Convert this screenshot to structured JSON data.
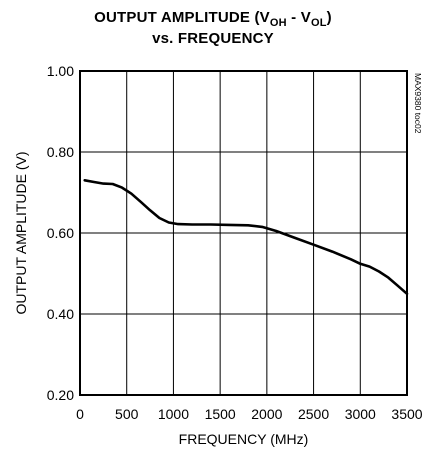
{
  "chart_data": {
    "type": "line",
    "title_line1_prefix": "OUTPUT AMPLITUDE (V",
    "title_sub_oh": "OH",
    "title_mid": " - V",
    "title_sub_ol": "OL",
    "title_suffix": ")",
    "title_line2": "vs. FREQUENCY",
    "xlabel": "FREQUENCY (MHz)",
    "ylabel": "OUTPUT AMPLITUDE (V)",
    "side_code": "MAX9380 toc02",
    "xlim": [
      0,
      3500
    ],
    "ylim": [
      0.2,
      1.0
    ],
    "x_ticks": [
      "0",
      "500",
      "1000",
      "1500",
      "2000",
      "2500",
      "3000",
      "3500"
    ],
    "y_ticks": [
      "1.00",
      "0.80",
      "0.60",
      "0.40",
      "0.20"
    ],
    "x_tick_values": [
      0,
      500,
      1000,
      1500,
      2000,
      2500,
      3000,
      3500
    ],
    "y_tick_values": [
      1.0,
      0.8,
      0.6,
      0.4,
      0.2
    ],
    "grid": true,
    "line_color": "#000000",
    "series": [
      {
        "x": [
          50,
          150,
          250,
          350,
          450,
          550,
          650,
          750,
          850,
          950,
          1050,
          1200,
          1400,
          1600,
          1800,
          1950,
          2100,
          2300,
          2500,
          2700,
          2900,
          3000,
          3100,
          3200,
          3300,
          3400,
          3500
        ],
        "values": [
          0.73,
          0.726,
          0.722,
          0.721,
          0.712,
          0.697,
          0.677,
          0.656,
          0.637,
          0.626,
          0.622,
          0.621,
          0.621,
          0.62,
          0.619,
          0.615,
          0.605,
          0.588,
          0.571,
          0.554,
          0.535,
          0.524,
          0.517,
          0.505,
          0.49,
          0.47,
          0.45
        ]
      }
    ]
  }
}
